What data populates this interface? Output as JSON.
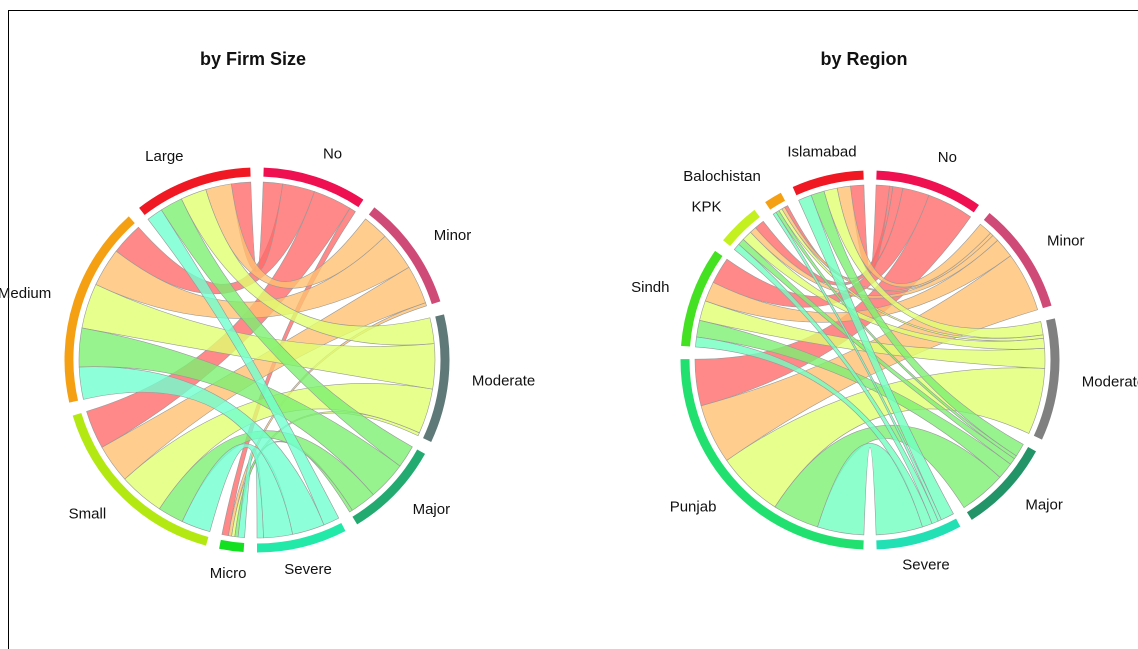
{
  "chart_data": [
    {
      "type": "chord",
      "title": "by Firm Size",
      "columns": [
        "No",
        "Minor",
        "Moderate",
        "Major",
        "Severe"
      ],
      "rows": [
        "Micro",
        "Small",
        "Medium",
        "Large"
      ],
      "matrix": [
        [
          2,
          1,
          1,
          1,
          2
        ],
        [
          12,
          12,
          14,
          8,
          9
        ],
        [
          10,
          12,
          14,
          12,
          10
        ],
        [
          6,
          8,
          8,
          7,
          5
        ]
      ],
      "column_colors": [
        "#ee1050",
        "#d04a78",
        "#5f7878",
        "#22aa70",
        "#22e8a8"
      ],
      "row_colors": [
        "#12e020",
        "#b4e812",
        "#f4a012",
        "#f01822"
      ],
      "ribbon_colors": [
        "#ff6a6a",
        "#ffc070",
        "#e0ff70",
        "#7cf070",
        "#70ffd0"
      ]
    },
    {
      "type": "chord",
      "title": "by Region",
      "columns": [
        "No",
        "Minor",
        "Moderate",
        "Major",
        "Severe"
      ],
      "rows": [
        "Punjab",
        "Sindh",
        "KPK",
        "Balochistan",
        "Islamabad"
      ],
      "matrix": [
        [
          14,
          18,
          20,
          14,
          14
        ],
        [
          8,
          6,
          6,
          5,
          3
        ],
        [
          3,
          2,
          3,
          2,
          2
        ],
        [
          1,
          1,
          1,
          1,
          1
        ],
        [
          4,
          4,
          4,
          4,
          4
        ]
      ],
      "column_colors": [
        "#ee1050",
        "#d04a78",
        "#808080",
        "#229468",
        "#22e0b4"
      ],
      "row_colors": [
        "#22e070",
        "#44e022",
        "#c4f020",
        "#f4a012",
        "#f01822"
      ],
      "ribbon_colors": [
        "#ff6a6a",
        "#ffc070",
        "#e0ff70",
        "#7cf070",
        "#70ffc0"
      ]
    }
  ]
}
